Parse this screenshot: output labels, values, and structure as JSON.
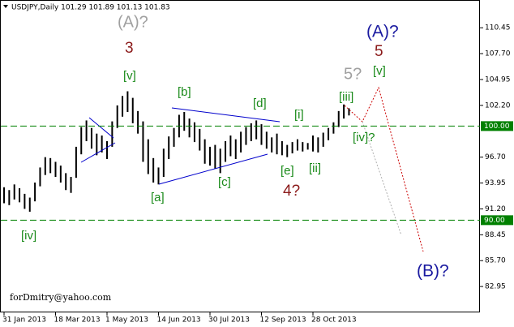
{
  "chart_data": {
    "type": "range-bar",
    "title": "USDJPY,Daily  101.29 101.89 101.13 101.83",
    "watermark": "forDmitry@yahoo.com",
    "categories": [
      "31 Jan 2013",
      null,
      null,
      null,
      null,
      null,
      null,
      null,
      null,
      null,
      "18 Mar 2013",
      null,
      null,
      null,
      null,
      null,
      null,
      null,
      null,
      null,
      "1 May 2013",
      null,
      null,
      null,
      null,
      null,
      null,
      null,
      null,
      null,
      "14 Jun 2013",
      null,
      null,
      null,
      null,
      null,
      null,
      null,
      null,
      null,
      "30 Jul 2013",
      null,
      null,
      null,
      null,
      null,
      null,
      null,
      null,
      null,
      "12 Sep 2013",
      null,
      null,
      null,
      null,
      null,
      null,
      null,
      null,
      null,
      "28 Oct 2013",
      null,
      null,
      null,
      null,
      null,
      null,
      null
    ],
    "high": [
      93.5,
      93.2,
      93.8,
      93.4,
      92.8,
      92.4,
      94.0,
      95.6,
      96.7,
      96.6,
      96.2,
      95.8,
      95.0,
      94.6,
      97.8,
      99.9,
      100.6,
      99.8,
      99.2,
      99.0,
      98.4,
      100.5,
      102.2,
      103.2,
      103.7,
      103.0,
      101.6,
      100.5,
      98.6,
      96.6,
      95.6,
      97.6,
      98.9,
      99.8,
      101.2,
      101.5,
      100.8,
      100.4,
      99.7,
      98.6,
      97.8,
      98.0,
      97.6,
      98.4,
      99.0,
      98.6,
      99.4,
      99.9,
      100.3,
      100.6,
      100.2,
      99.4,
      98.8,
      99.2,
      98.4,
      98.0,
      98.3,
      98.6,
      98.3,
      98.2,
      99.0,
      98.8,
      99.3,
      99.8,
      100.4,
      101.6,
      102.3,
      101.89
    ],
    "low": [
      91.8,
      91.6,
      92.2,
      91.9,
      91.2,
      90.9,
      92.0,
      93.6,
      94.8,
      95.0,
      94.6,
      94.0,
      93.2,
      92.9,
      94.5,
      97.0,
      98.4,
      97.6,
      96.9,
      97.2,
      96.5,
      97.8,
      99.8,
      101.0,
      101.5,
      100.3,
      99.2,
      96.2,
      94.9,
      94.0,
      93.8,
      94.6,
      96.5,
      97.8,
      98.8,
      99.5,
      98.8,
      98.3,
      97.4,
      96.0,
      95.8,
      95.5,
      95.0,
      96.2,
      96.8,
      96.5,
      97.2,
      98.0,
      98.4,
      98.6,
      98.0,
      97.6,
      97.2,
      97.0,
      96.9,
      96.7,
      97.1,
      97.4,
      97.3,
      97.5,
      97.3,
      97.2,
      97.8,
      98.5,
      99.2,
      99.9,
      100.8,
      101.13
    ],
    "color": "#000000",
    "ylim": [
      80.2,
      113.4
    ],
    "yticks": [
      110.45,
      {
        "value": 107.7,
        "label": "107.70"
      },
      104.95,
      {
        "value": 102.2,
        "label": "102.20"
      },
      {
        "value": 96.7,
        "label": "96.70"
      },
      93.95,
      {
        "value": 91.2,
        "label": "91.20"
      },
      88.45,
      {
        "value": 85.7,
        "label": "85.70"
      },
      82.95
    ],
    "levels": [
      {
        "value": 100,
        "label": "100.00"
      },
      {
        "value": 90,
        "label": "90.00"
      }
    ],
    "level_color": "#008000",
    "annotations": [
      "(A)?",
      "3",
      "[v]",
      "[b]",
      "[d]",
      "[i]",
      "[iii]",
      "5?",
      "[v]",
      "5",
      "(A)?",
      "[iv]?",
      "[e]",
      "[ii]",
      "4?",
      "[c]",
      "[a]",
      "[iv]",
      "(B)?"
    ]
  }
}
